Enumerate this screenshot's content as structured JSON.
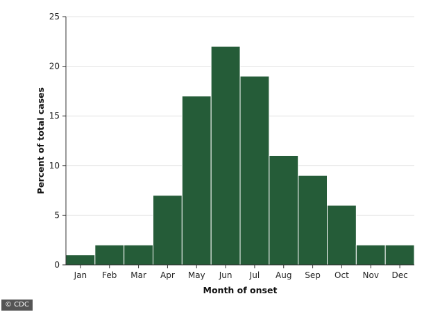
{
  "chart_data": {
    "type": "bar",
    "categories": [
      "Jan",
      "Feb",
      "Mar",
      "Apr",
      "May",
      "Jun",
      "Jul",
      "Aug",
      "Sep",
      "Oct",
      "Nov",
      "Dec"
    ],
    "values": [
      1,
      2,
      2,
      7,
      17,
      22,
      19,
      11,
      9,
      6,
      2,
      2
    ],
    "xlabel": "Month of onset",
    "ylabel": "Percent of total cases",
    "ylim": [
      0,
      25
    ],
    "yticks": [
      0,
      5,
      10,
      15,
      20,
      25
    ],
    "grid": true,
    "bar_color": "#255c38",
    "bar_edge_color": "#ffffff"
  },
  "credit": "© CDC"
}
